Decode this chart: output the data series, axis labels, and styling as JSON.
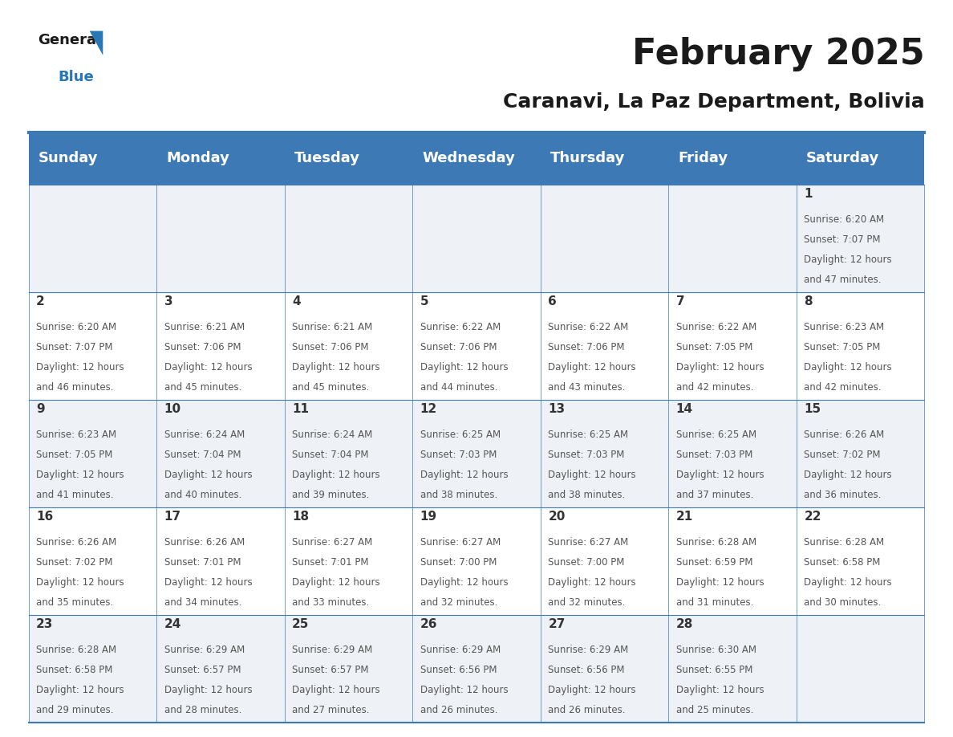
{
  "title": "February 2025",
  "subtitle": "Caranavi, La Paz Department, Bolivia",
  "header_color": "#3d7ab5",
  "header_text_color": "#ffffff",
  "background_color": "#ffffff",
  "cell_bg_even": "#eef2f7",
  "cell_bg_odd": "#ffffff",
  "border_color": "#3d7ab5",
  "day_names": [
    "Sunday",
    "Monday",
    "Tuesday",
    "Wednesday",
    "Thursday",
    "Friday",
    "Saturday"
  ],
  "title_fontsize": 32,
  "subtitle_fontsize": 18,
  "header_fontsize": 13,
  "day_number_fontsize": 11,
  "info_fontsize": 8.5,
  "logo_general_color": "#1a1a1a",
  "logo_blue_color": "#2878b5",
  "logo_triangle_color": "#2878b5",
  "days": [
    {
      "day": 1,
      "col": 6,
      "row": 0,
      "sunrise": "6:20 AM",
      "sunset": "7:07 PM",
      "daylight": "12 hours and 47 minutes."
    },
    {
      "day": 2,
      "col": 0,
      "row": 1,
      "sunrise": "6:20 AM",
      "sunset": "7:07 PM",
      "daylight": "12 hours and 46 minutes."
    },
    {
      "day": 3,
      "col": 1,
      "row": 1,
      "sunrise": "6:21 AM",
      "sunset": "7:06 PM",
      "daylight": "12 hours and 45 minutes."
    },
    {
      "day": 4,
      "col": 2,
      "row": 1,
      "sunrise": "6:21 AM",
      "sunset": "7:06 PM",
      "daylight": "12 hours and 45 minutes."
    },
    {
      "day": 5,
      "col": 3,
      "row": 1,
      "sunrise": "6:22 AM",
      "sunset": "7:06 PM",
      "daylight": "12 hours and 44 minutes."
    },
    {
      "day": 6,
      "col": 4,
      "row": 1,
      "sunrise": "6:22 AM",
      "sunset": "7:06 PM",
      "daylight": "12 hours and 43 minutes."
    },
    {
      "day": 7,
      "col": 5,
      "row": 1,
      "sunrise": "6:22 AM",
      "sunset": "7:05 PM",
      "daylight": "12 hours and 42 minutes."
    },
    {
      "day": 8,
      "col": 6,
      "row": 1,
      "sunrise": "6:23 AM",
      "sunset": "7:05 PM",
      "daylight": "12 hours and 42 minutes."
    },
    {
      "day": 9,
      "col": 0,
      "row": 2,
      "sunrise": "6:23 AM",
      "sunset": "7:05 PM",
      "daylight": "12 hours and 41 minutes."
    },
    {
      "day": 10,
      "col": 1,
      "row": 2,
      "sunrise": "6:24 AM",
      "sunset": "7:04 PM",
      "daylight": "12 hours and 40 minutes."
    },
    {
      "day": 11,
      "col": 2,
      "row": 2,
      "sunrise": "6:24 AM",
      "sunset": "7:04 PM",
      "daylight": "12 hours and 39 minutes."
    },
    {
      "day": 12,
      "col": 3,
      "row": 2,
      "sunrise": "6:25 AM",
      "sunset": "7:03 PM",
      "daylight": "12 hours and 38 minutes."
    },
    {
      "day": 13,
      "col": 4,
      "row": 2,
      "sunrise": "6:25 AM",
      "sunset": "7:03 PM",
      "daylight": "12 hours and 38 minutes."
    },
    {
      "day": 14,
      "col": 5,
      "row": 2,
      "sunrise": "6:25 AM",
      "sunset": "7:03 PM",
      "daylight": "12 hours and 37 minutes."
    },
    {
      "day": 15,
      "col": 6,
      "row": 2,
      "sunrise": "6:26 AM",
      "sunset": "7:02 PM",
      "daylight": "12 hours and 36 minutes."
    },
    {
      "day": 16,
      "col": 0,
      "row": 3,
      "sunrise": "6:26 AM",
      "sunset": "7:02 PM",
      "daylight": "12 hours and 35 minutes."
    },
    {
      "day": 17,
      "col": 1,
      "row": 3,
      "sunrise": "6:26 AM",
      "sunset": "7:01 PM",
      "daylight": "12 hours and 34 minutes."
    },
    {
      "day": 18,
      "col": 2,
      "row": 3,
      "sunrise": "6:27 AM",
      "sunset": "7:01 PM",
      "daylight": "12 hours and 33 minutes."
    },
    {
      "day": 19,
      "col": 3,
      "row": 3,
      "sunrise": "6:27 AM",
      "sunset": "7:00 PM",
      "daylight": "12 hours and 32 minutes."
    },
    {
      "day": 20,
      "col": 4,
      "row": 3,
      "sunrise": "6:27 AM",
      "sunset": "7:00 PM",
      "daylight": "12 hours and 32 minutes."
    },
    {
      "day": 21,
      "col": 5,
      "row": 3,
      "sunrise": "6:28 AM",
      "sunset": "6:59 PM",
      "daylight": "12 hours and 31 minutes."
    },
    {
      "day": 22,
      "col": 6,
      "row": 3,
      "sunrise": "6:28 AM",
      "sunset": "6:58 PM",
      "daylight": "12 hours and 30 minutes."
    },
    {
      "day": 23,
      "col": 0,
      "row": 4,
      "sunrise": "6:28 AM",
      "sunset": "6:58 PM",
      "daylight": "12 hours and 29 minutes."
    },
    {
      "day": 24,
      "col": 1,
      "row": 4,
      "sunrise": "6:29 AM",
      "sunset": "6:57 PM",
      "daylight": "12 hours and 28 minutes."
    },
    {
      "day": 25,
      "col": 2,
      "row": 4,
      "sunrise": "6:29 AM",
      "sunset": "6:57 PM",
      "daylight": "12 hours and 27 minutes."
    },
    {
      "day": 26,
      "col": 3,
      "row": 4,
      "sunrise": "6:29 AM",
      "sunset": "6:56 PM",
      "daylight": "12 hours and 26 minutes."
    },
    {
      "day": 27,
      "col": 4,
      "row": 4,
      "sunrise": "6:29 AM",
      "sunset": "6:56 PM",
      "daylight": "12 hours and 26 minutes."
    },
    {
      "day": 28,
      "col": 5,
      "row": 4,
      "sunrise": "6:30 AM",
      "sunset": "6:55 PM",
      "daylight": "12 hours and 25 minutes."
    }
  ]
}
